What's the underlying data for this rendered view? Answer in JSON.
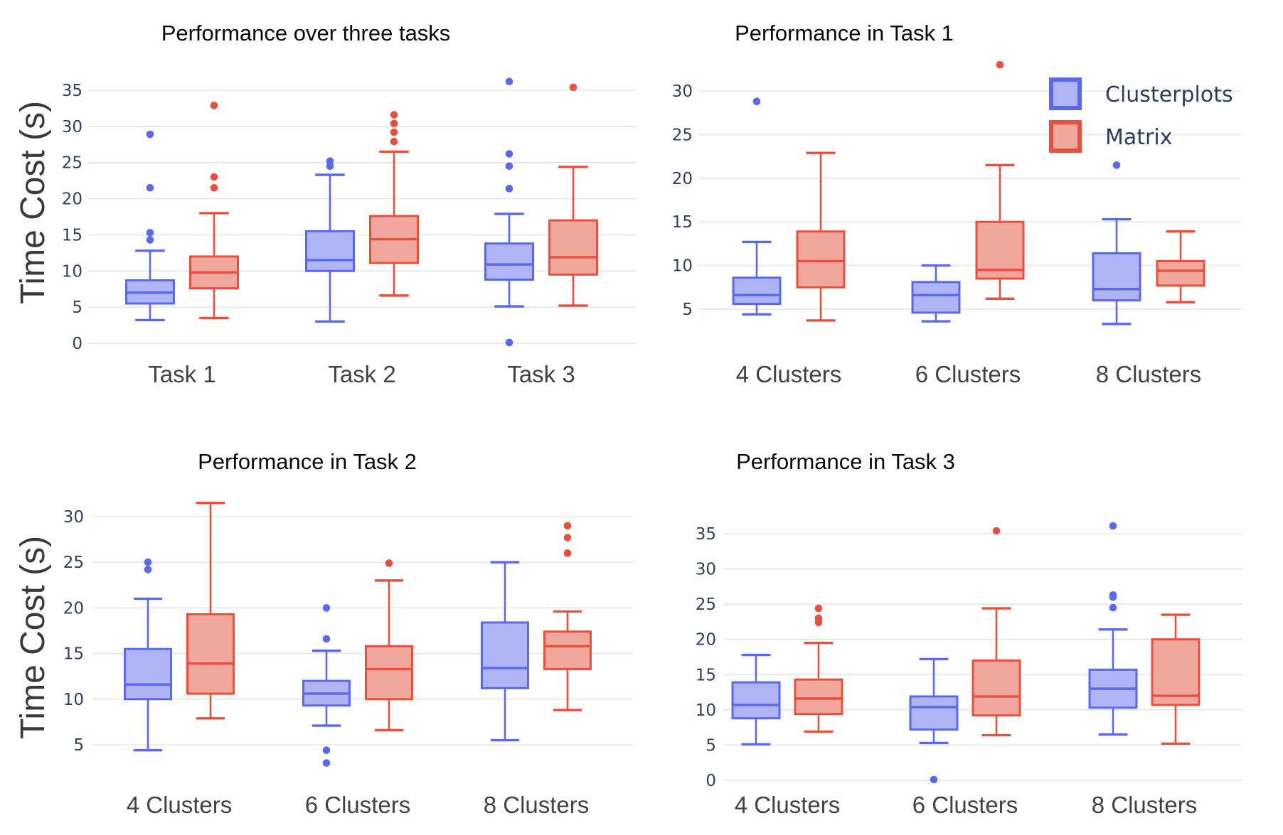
{
  "page": {
    "background": "#ffffff"
  },
  "colors": {
    "clusterplots_stroke": "#5A68EC",
    "clusterplots_fill": "#AFB5F4",
    "matrix_stroke": "#E8503E",
    "matrix_fill": "#F2A79D",
    "grid": "#E5E5E9",
    "tick_label": "#2F3F5C",
    "category_label": "#424242",
    "title": "#0A0A0A",
    "axis_label": "#3A3A3A",
    "legend_text": "#2E3D5E"
  },
  "legend": {
    "items": [
      {
        "series": "clusterplots",
        "label": "Clusterplots"
      },
      {
        "series": "matrix",
        "label": "Matrix"
      }
    ]
  },
  "chart_data": [
    {
      "id": "overview",
      "type": "boxplot",
      "title": "Performance over three tasks",
      "ylabel": "Time Cost (s)",
      "xlabel": "",
      "yticks": [
        0,
        5,
        10,
        15,
        20,
        25,
        30,
        35
      ],
      "ylim": [
        -1.5,
        37
      ],
      "grid": true,
      "legend": false,
      "legend_position": null,
      "categories": [
        "Task 1",
        "Task 2",
        "Task 3"
      ],
      "series": [
        {
          "name": "Clusterplots",
          "boxes": [
            {
              "low": 3.2,
              "q1": 5.5,
              "median": 7.0,
              "q3": 8.7,
              "high": 12.8,
              "outliers": [
                14.3,
                15.3,
                21.5,
                28.9
              ]
            },
            {
              "low": 3.0,
              "q1": 10.0,
              "median": 11.5,
              "q3": 15.5,
              "high": 23.3,
              "outliers": [
                24.5,
                25.2
              ]
            },
            {
              "low": 5.1,
              "q1": 8.8,
              "median": 10.9,
              "q3": 13.8,
              "high": 17.9,
              "outliers": [
                0.1,
                21.4,
                24.5,
                26.2,
                36.2
              ]
            }
          ]
        },
        {
          "name": "Matrix",
          "boxes": [
            {
              "low": 3.5,
              "q1": 7.6,
              "median": 9.8,
              "q3": 12.0,
              "high": 18.0,
              "outliers": [
                21.5,
                23.0,
                32.9
              ]
            },
            {
              "low": 6.6,
              "q1": 11.1,
              "median": 14.4,
              "q3": 17.6,
              "high": 26.5,
              "outliers": [
                27.9,
                29.2,
                30.4,
                31.6
              ]
            },
            {
              "low": 5.2,
              "q1": 9.5,
              "median": 11.9,
              "q3": 17.0,
              "high": 24.4,
              "outliers": [
                35.4
              ]
            }
          ]
        }
      ]
    },
    {
      "id": "task1",
      "type": "boxplot",
      "title": "Performance in Task 1",
      "ylabel": null,
      "xlabel": "",
      "yticks": [
        5,
        10,
        15,
        20,
        25,
        30
      ],
      "ylim": [
        2.5,
        34
      ],
      "grid": true,
      "legend": true,
      "legend_position": "top-right",
      "categories": [
        "4 Clusters",
        "6 Clusters",
        "8 Clusters"
      ],
      "series": [
        {
          "name": "Clusterplots",
          "boxes": [
            {
              "low": 4.4,
              "q1": 5.6,
              "median": 6.6,
              "q3": 8.6,
              "high": 12.7,
              "outliers": [
                28.8
              ]
            },
            {
              "low": 3.6,
              "q1": 4.6,
              "median": 6.6,
              "q3": 8.1,
              "high": 10.0,
              "outliers": []
            },
            {
              "low": 3.3,
              "q1": 6.0,
              "median": 7.3,
              "q3": 11.4,
              "high": 15.3,
              "outliers": [
                21.5
              ]
            }
          ]
        },
        {
          "name": "Matrix",
          "boxes": [
            {
              "low": 3.7,
              "q1": 7.5,
              "median": 10.5,
              "q3": 13.9,
              "high": 22.9,
              "outliers": []
            },
            {
              "low": 6.2,
              "q1": 8.5,
              "median": 9.5,
              "q3": 15.0,
              "high": 21.5,
              "outliers": [
                33.0
              ]
            },
            {
              "low": 5.8,
              "q1": 7.7,
              "median": 9.4,
              "q3": 10.5,
              "high": 13.9,
              "outliers": []
            }
          ]
        }
      ]
    },
    {
      "id": "task2",
      "type": "boxplot",
      "title": "Performance in Task 2",
      "ylabel": "Time Cost (s)",
      "xlabel": "",
      "yticks": [
        5,
        10,
        15,
        20,
        25,
        30
      ],
      "ylim": [
        2,
        33
      ],
      "grid": true,
      "legend": false,
      "legend_position": null,
      "categories": [
        "4 Clusters",
        "6 Clusters",
        "8 Clusters"
      ],
      "series": [
        {
          "name": "Clusterplots",
          "boxes": [
            {
              "low": 4.4,
              "q1": 10.0,
              "median": 11.6,
              "q3": 15.5,
              "high": 21.0,
              "outliers": [
                24.2,
                25.0
              ]
            },
            {
              "low": 7.1,
              "q1": 9.3,
              "median": 10.6,
              "q3": 12.0,
              "high": 15.3,
              "outliers": [
                3.0,
                4.4,
                16.6,
                20.0
              ]
            },
            {
              "low": 5.5,
              "q1": 11.2,
              "median": 13.4,
              "q3": 18.4,
              "high": 25.0,
              "outliers": []
            }
          ]
        },
        {
          "name": "Matrix",
          "boxes": [
            {
              "low": 7.9,
              "q1": 10.6,
              "median": 13.9,
              "q3": 19.3,
              "high": 31.5,
              "outliers": []
            },
            {
              "low": 6.6,
              "q1": 10.0,
              "median": 13.3,
              "q3": 15.8,
              "high": 23.0,
              "outliers": [
                24.9
              ]
            },
            {
              "low": 8.8,
              "q1": 13.3,
              "median": 15.8,
              "q3": 17.4,
              "high": 19.6,
              "outliers": [
                26.0,
                27.7,
                29.0
              ]
            }
          ]
        }
      ]
    },
    {
      "id": "task3",
      "type": "boxplot",
      "title": "Performance in Task 3",
      "ylabel": null,
      "xlabel": "",
      "yticks": [
        0,
        5,
        10,
        15,
        20,
        25,
        30,
        35
      ],
      "ylim": [
        -1,
        37.5
      ],
      "grid": true,
      "legend": false,
      "legend_position": null,
      "categories": [
        "4 Clusters",
        "6 Clusters",
        "8 Clusters"
      ],
      "series": [
        {
          "name": "Clusterplots",
          "boxes": [
            {
              "low": 5.1,
              "q1": 8.8,
              "median": 10.7,
              "q3": 13.9,
              "high": 17.8,
              "outliers": []
            },
            {
              "low": 5.3,
              "q1": 7.2,
              "median": 10.4,
              "q3": 11.9,
              "high": 17.2,
              "outliers": [
                0.1
              ]
            },
            {
              "low": 6.5,
              "q1": 10.3,
              "median": 13.0,
              "q3": 15.7,
              "high": 21.4,
              "outliers": [
                24.5,
                26.0,
                26.3,
                36.1
              ]
            }
          ]
        },
        {
          "name": "Matrix",
          "boxes": [
            {
              "low": 6.9,
              "q1": 9.4,
              "median": 11.6,
              "q3": 14.3,
              "high": 19.5,
              "outliers": [
                22.4,
                23.0,
                24.4
              ]
            },
            {
              "low": 6.4,
              "q1": 9.2,
              "median": 11.9,
              "q3": 17.0,
              "high": 24.4,
              "outliers": [
                35.4
              ]
            },
            {
              "low": 5.2,
              "q1": 10.7,
              "median": 12.0,
              "q3": 20.0,
              "high": 23.5,
              "outliers": []
            }
          ]
        }
      ]
    }
  ]
}
